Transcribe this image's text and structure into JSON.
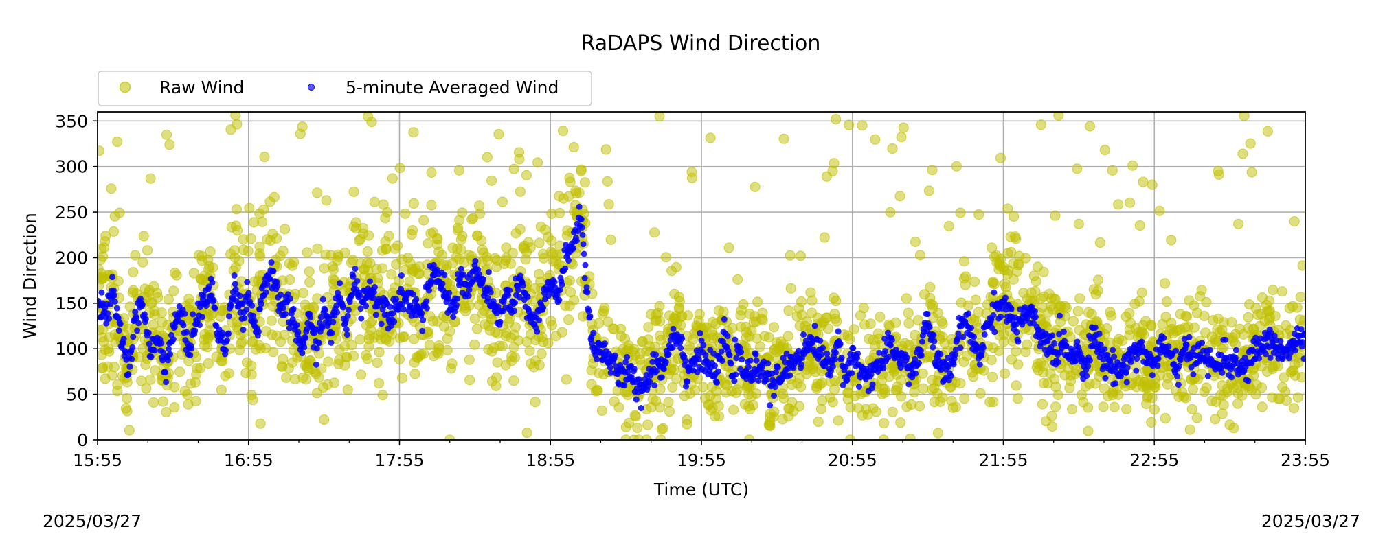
{
  "chart_data": {
    "type": "scatter",
    "title": "RaDAPS Wind Direction",
    "xlabel": "Time (UTC)",
    "ylabel": "Wind Direction",
    "ylim": [
      0,
      360
    ],
    "yticks": [
      "0",
      "50",
      "100",
      "150",
      "200",
      "250",
      "300",
      "350"
    ],
    "xticks": [
      "15:55",
      "16:55",
      "17:55",
      "18:55",
      "19:55",
      "20:55",
      "21:55",
      "22:55",
      "23:55"
    ],
    "x_range_hours": [
      0,
      8
    ],
    "grid": true,
    "legend_placement": "top-left, above plot",
    "start_date": "2025/03/27",
    "end_date": "2025/03/27",
    "series": [
      {
        "name": "Raw Wind",
        "color": "#bfbf00",
        "marker": "circle-large",
        "noise_spread": 55,
        "outlier_fraction": 0.04
      },
      {
        "name": "5-minute Averaged Wind",
        "color": "#0000ff",
        "marker": "circle-small",
        "x_hours": [
          0.0,
          0.05,
          0.1,
          0.15,
          0.2,
          0.25,
          0.3,
          0.35,
          0.4,
          0.45,
          0.5,
          0.55,
          0.6,
          0.65,
          0.7,
          0.75,
          0.8,
          0.85,
          0.9,
          0.95,
          1.0,
          1.05,
          1.1,
          1.15,
          1.2,
          1.25,
          1.3,
          1.35,
          1.4,
          1.45,
          1.5,
          1.55,
          1.6,
          1.65,
          1.7,
          1.75,
          1.8,
          1.85,
          1.9,
          1.95,
          2.0,
          2.05,
          2.1,
          2.15,
          2.2,
          2.25,
          2.3,
          2.35,
          2.4,
          2.45,
          2.5,
          2.55,
          2.6,
          2.65,
          2.7,
          2.75,
          2.8,
          2.85,
          2.9,
          2.95,
          3.0,
          3.05,
          3.1,
          3.15,
          3.2,
          3.25,
          3.3,
          3.35,
          3.4,
          3.45,
          3.5,
          3.55,
          3.6,
          3.65,
          3.7,
          3.75,
          3.8,
          3.85,
          3.9,
          3.95,
          4.0,
          4.05,
          4.1,
          4.15,
          4.2,
          4.25,
          4.3,
          4.35,
          4.4,
          4.45,
          4.5,
          4.55,
          4.6,
          4.65,
          4.7,
          4.75,
          4.8,
          4.85,
          4.9,
          4.95,
          5.0,
          5.05,
          5.1,
          5.15,
          5.2,
          5.25,
          5.3,
          5.35,
          5.4,
          5.45,
          5.5,
          5.55,
          5.6,
          5.65,
          5.7,
          5.75,
          5.8,
          5.85,
          5.9,
          5.95,
          6.0,
          6.05,
          6.1,
          6.15,
          6.2,
          6.25,
          6.3,
          6.35,
          6.4,
          6.45,
          6.5,
          6.55,
          6.6,
          6.65,
          6.7,
          6.75,
          6.8,
          6.85,
          6.9,
          6.95,
          7.0,
          7.05,
          7.1,
          7.15,
          7.2,
          7.25,
          7.3,
          7.35,
          7.4,
          7.45,
          7.5,
          7.55,
          7.6,
          7.65,
          7.7,
          7.75,
          7.8,
          7.85,
          7.9,
          7.95,
          8.0
        ],
        "values": [
          150,
          135,
          160,
          120,
          75,
          130,
          150,
          95,
          110,
          80,
          120,
          140,
          100,
          130,
          150,
          165,
          120,
          95,
          175,
          140,
          160,
          115,
          170,
          180,
          150,
          145,
          130,
          100,
          130,
          105,
          140,
          120,
          160,
          125,
          180,
          150,
          165,
          155,
          145,
          140,
          160,
          155,
          150,
          135,
          170,
          185,
          160,
          140,
          180,
          165,
          185,
          170,
          155,
          130,
          160,
          145,
          175,
          140,
          125,
          150,
          170,
          160,
          195,
          215,
          250,
          140,
          95,
          100,
          85,
          70,
          75,
          65,
          55,
          70,
          85,
          80,
          110,
          120,
          75,
          85,
          95,
          80,
          70,
          115,
          80,
          90,
          70,
          75,
          85,
          60,
          65,
          75,
          85,
          95,
          100,
          110,
          90,
          80,
          105,
          70,
          95,
          75,
          70,
          80,
          85,
          100,
          95,
          85,
          75,
          95,
          135,
          90,
          80,
          70,
          115,
          130,
          105,
          95,
          130,
          145,
          150,
          135,
          120,
          140,
          130,
          110,
          105,
          95,
          110,
          90,
          100,
          80,
          120,
          90,
          85,
          75,
          80,
          95,
          100,
          90,
          85,
          105,
          90,
          80,
          95,
          90,
          100,
          85,
          80,
          90,
          85,
          80,
          75,
          95,
          100,
          110,
          105,
          95,
          100,
          110,
          105
        ]
      }
    ]
  }
}
